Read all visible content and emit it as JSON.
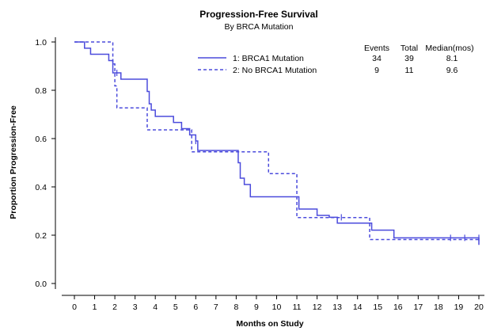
{
  "chart_data": {
    "type": "line",
    "title": "Progression-Free Survival",
    "subtitle": "By BRCA Mutation",
    "xlabel": "Months on Study",
    "ylabel": "Proportion Progression-Free",
    "xlim": [
      0,
      20
    ],
    "ylim": [
      0.0,
      1.0
    ],
    "xticks": [
      "0",
      "1",
      "2",
      "3",
      "4",
      "5",
      "6",
      "7",
      "8",
      "9",
      "10",
      "11",
      "12",
      "13",
      "14",
      "15",
      "16",
      "17",
      "18",
      "19",
      "20"
    ],
    "yticks": [
      "0.0",
      "0.2",
      "0.4",
      "0.6",
      "0.8",
      "1.0"
    ],
    "legend_table": {
      "headers": [
        "Events",
        "Total",
        "Median(mos)"
      ],
      "rows": [
        {
          "label": "1: BRCA1 Mutation",
          "events": "34",
          "total": "39",
          "median": "8.1"
        },
        {
          "label": "2: No BRCA1 Mutation",
          "events": "9",
          "total": "11",
          "median": "9.6"
        }
      ]
    },
    "series": [
      {
        "name": "1: BRCA1 Mutation",
        "color": "#4b4bdc",
        "style": "solid",
        "x": [
          0,
          0.5,
          0.8,
          1.7,
          1.9,
          2.3,
          2.5,
          3.6,
          3.7,
          3.8,
          4.0,
          4.9,
          5.3,
          5.7,
          6.0,
          6.1,
          7.9,
          8.1,
          8.2,
          8.4,
          8.7,
          11.0,
          11.1,
          12.0,
          12.6,
          13.0,
          14.7,
          15.8,
          17.1,
          20.0,
          20.0
        ],
        "y": [
          1.0,
          0.974,
          0.949,
          0.923,
          0.872,
          0.846,
          0.846,
          0.795,
          0.744,
          0.718,
          0.692,
          0.667,
          0.641,
          0.615,
          0.59,
          0.551,
          0.551,
          0.5,
          0.436,
          0.41,
          0.359,
          0.359,
          0.308,
          0.282,
          0.274,
          0.25,
          0.221,
          0.189,
          0.189,
          0.16,
          0.16
        ],
        "censored_x": [
          2.1,
          6.0,
          11.1,
          13.2,
          18.6,
          19.3,
          20.0
        ],
        "censored_y": [
          0.872,
          0.59,
          0.333,
          0.274,
          0.189,
          0.189,
          0.189
        ]
      },
      {
        "name": "2: No BRCA1 Mutation",
        "color": "#4b4bdc",
        "style": "dashed",
        "x": [
          0,
          1.8,
          1.9,
          2.0,
          2.1,
          3.4,
          3.5,
          3.6,
          5.7,
          5.8,
          9.6,
          11.0,
          14.6,
          20.0
        ],
        "y": [
          1.0,
          1.0,
          0.909,
          0.818,
          0.727,
          0.727,
          0.727,
          0.636,
          0.636,
          0.545,
          0.455,
          0.273,
          0.182,
          0.182
        ],
        "censored_x": [],
        "censored_y": []
      }
    ]
  }
}
